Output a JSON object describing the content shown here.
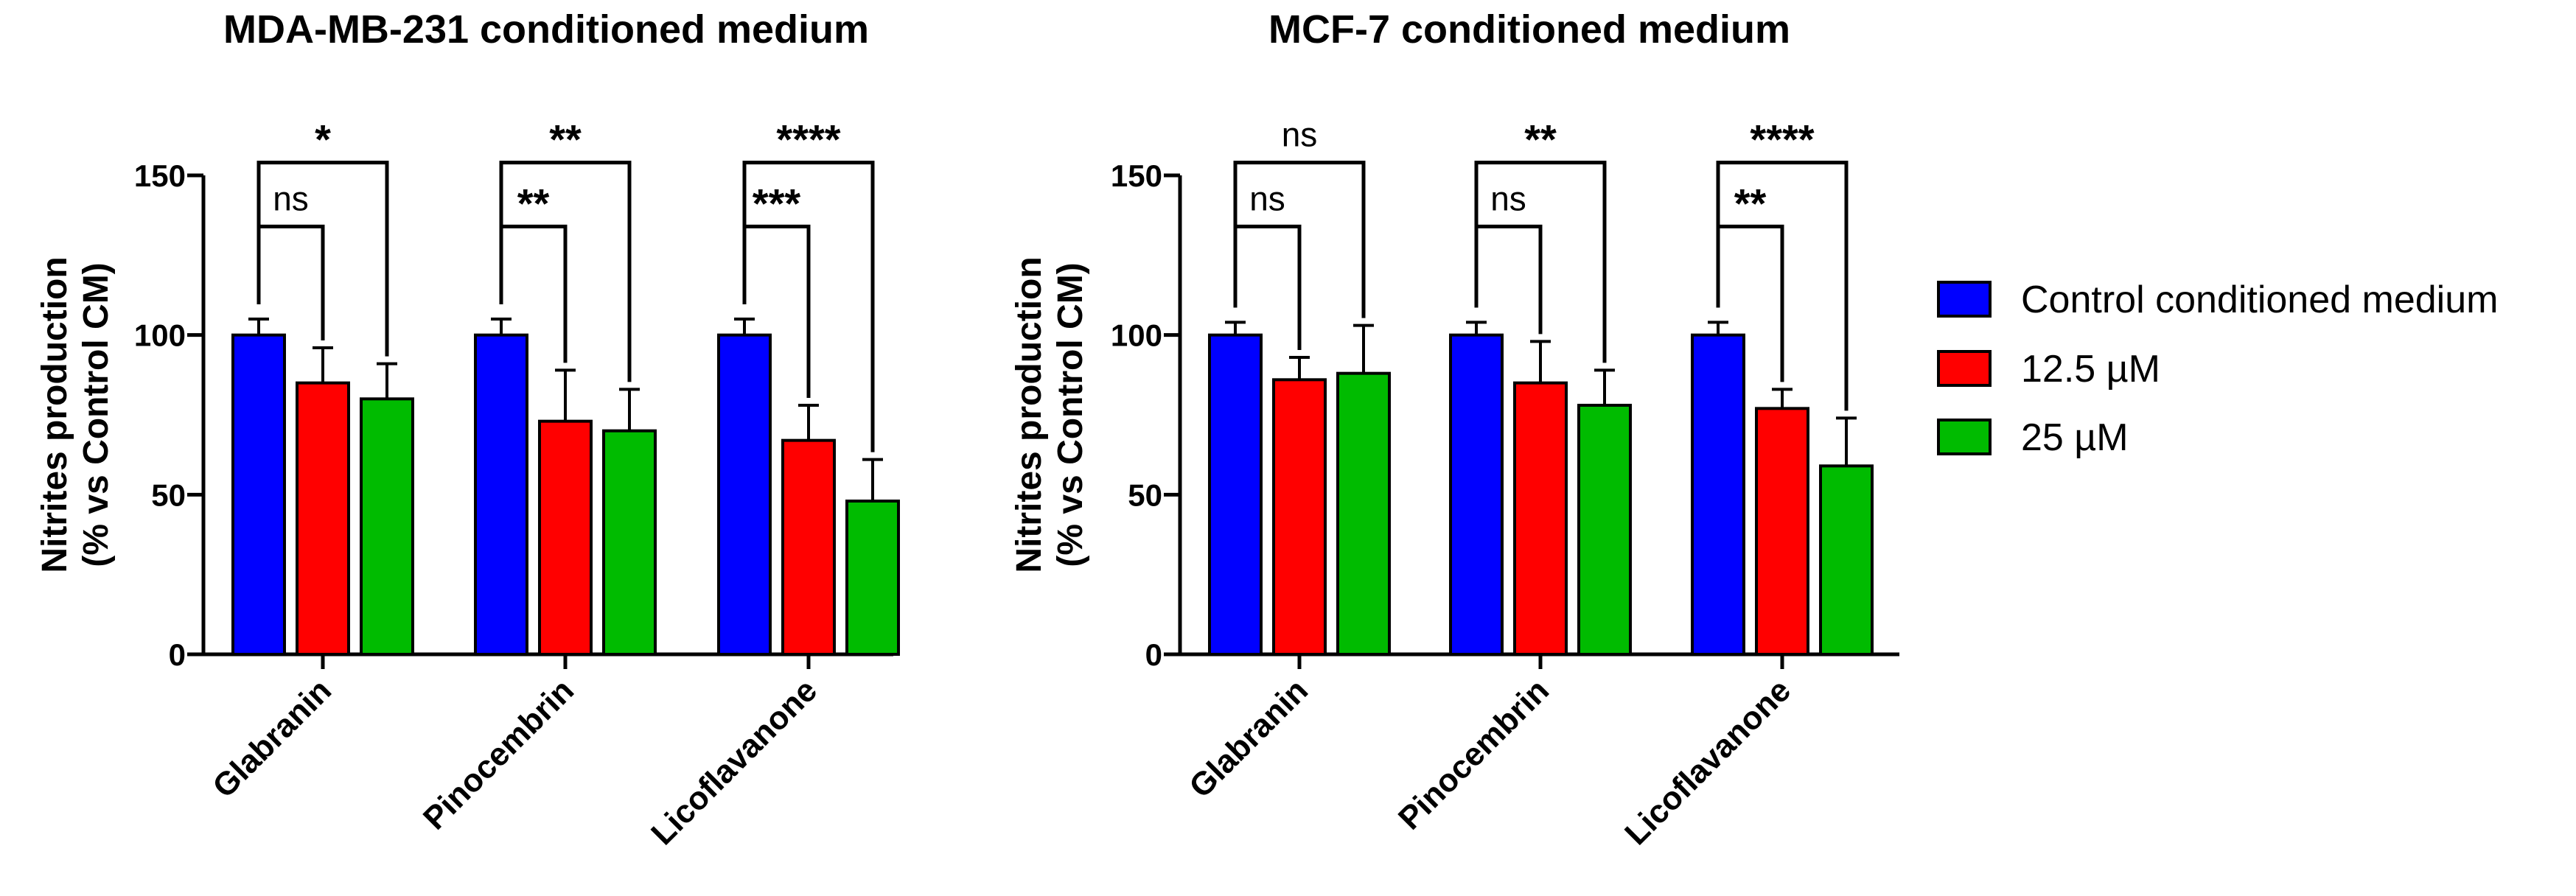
{
  "chart_data": [
    {
      "type": "bar",
      "title": "MDA-MB-231 conditioned medium",
      "ylabel_line1": "Nitrites production",
      "ylabel_line2": "(% vs Control CM)",
      "ylim": [
        0,
        150
      ],
      "yticks": [
        "0",
        "50",
        "100",
        "150"
      ],
      "categories": [
        "Glabranin",
        "Pinocembrin",
        "Licoflavanone"
      ],
      "series": [
        {
          "name": "Control conditioned medium",
          "values": [
            100,
            100,
            100
          ],
          "errors": [
            5,
            5,
            5
          ]
        },
        {
          "name": "12.5 µM",
          "values": [
            85,
            73,
            67
          ],
          "errors": [
            11,
            16,
            11
          ]
        },
        {
          "name": "25 µM",
          "values": [
            80,
            70,
            48
          ],
          "errors": [
            11,
            13,
            13
          ]
        }
      ],
      "significance": [
        {
          "group": 0,
          "pair": "control-12.5",
          "label": "ns"
        },
        {
          "group": 0,
          "pair": "control-25",
          "label": "*"
        },
        {
          "group": 1,
          "pair": "control-12.5",
          "label": "**"
        },
        {
          "group": 1,
          "pair": "control-25",
          "label": "**"
        },
        {
          "group": 2,
          "pair": "control-12.5",
          "label": "***"
        },
        {
          "group": 2,
          "pair": "control-25",
          "label": "****"
        }
      ]
    },
    {
      "type": "bar",
      "title": "MCF-7  conditioned medium",
      "ylabel_line1": "Nitrites production",
      "ylabel_line2": "(% vs Control CM)",
      "ylim": [
        0,
        150
      ],
      "yticks": [
        "0",
        "50",
        "100",
        "150"
      ],
      "categories": [
        "Glabranin",
        "Pinocembrin",
        "Licoflavanone"
      ],
      "series": [
        {
          "name": "Control conditioned medium",
          "values": [
            100,
            100,
            100
          ],
          "errors": [
            4,
            4,
            4
          ]
        },
        {
          "name": "12.5 µM",
          "values": [
            86,
            85,
            77
          ],
          "errors": [
            7,
            13,
            6
          ]
        },
        {
          "name": "25 µM",
          "values": [
            88,
            78,
            59
          ],
          "errors": [
            15,
            11,
            15
          ]
        }
      ],
      "significance": [
        {
          "group": 0,
          "pair": "control-12.5",
          "label": "ns"
        },
        {
          "group": 0,
          "pair": "control-25",
          "label": "ns"
        },
        {
          "group": 1,
          "pair": "control-12.5",
          "label": "ns"
        },
        {
          "group": 1,
          "pair": "control-25",
          "label": "**"
        },
        {
          "group": 2,
          "pair": "control-12.5",
          "label": "**"
        },
        {
          "group": 2,
          "pair": "control-25",
          "label": "****"
        }
      ]
    }
  ],
  "legend": {
    "position": "right",
    "items": [
      {
        "label": "Control conditioned medium",
        "color": "#0000FF"
      },
      {
        "label": "12.5 µM",
        "color": "#FF0000"
      },
      {
        "label": "25 µM",
        "color": "#00BB00"
      }
    ]
  }
}
